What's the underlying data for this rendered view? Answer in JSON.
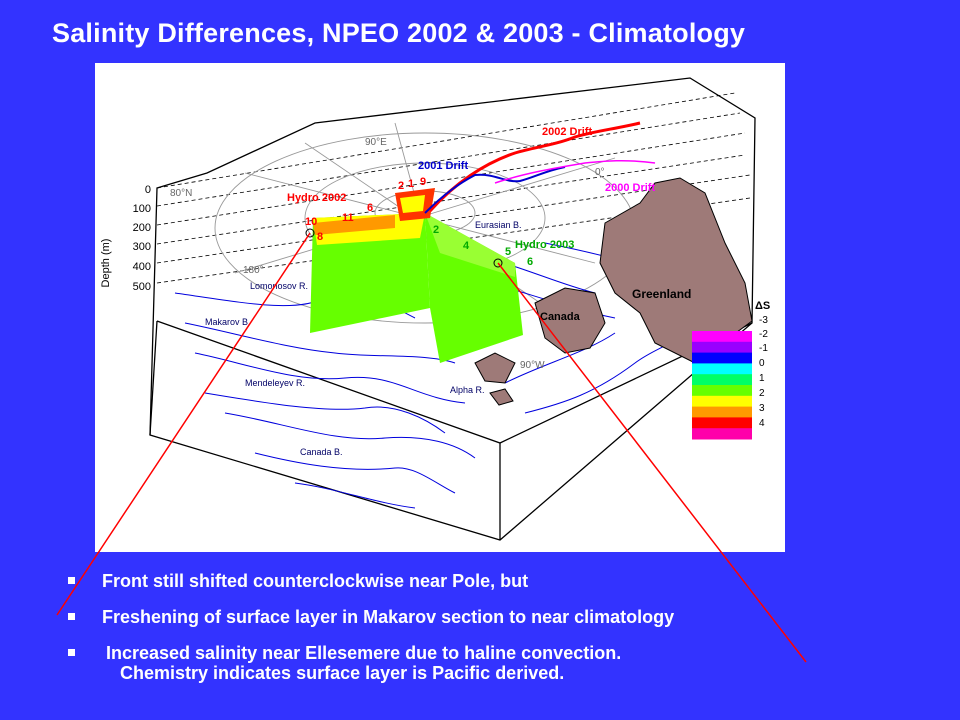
{
  "title": "Salinity Differences,  NPEO 2002 & 2003 - Climatology",
  "diagram": {
    "drift_labels": {
      "d2002": "2002 Drift",
      "d2001": "2001 Drift",
      "d2000": "2000 Drift"
    },
    "hydro_labels": {
      "h2002": "Hydro 2002",
      "h2003": "Hydro 2003"
    },
    "station_numbers_2002": [
      "2",
      "1",
      "9",
      "6",
      "10",
      "11",
      "8"
    ],
    "station_numbers_2003": [
      "2",
      "4",
      "5",
      "6"
    ],
    "lat_lon_labels": {
      "lat80": "80°N",
      "lon90e": "90°E",
      "lon180": "180°",
      "lon90w": "90°W",
      "lon0": "0°"
    },
    "depth_axis": {
      "label": "Depth (m)",
      "ticks": [
        "0",
        "100",
        "200",
        "300",
        "400",
        "500"
      ]
    },
    "region_labels": {
      "greenland": "Greenland",
      "canada": "Canada",
      "eurasian_basin": "Eurasian B.",
      "lomonosov": "Lomonosov R.",
      "makarov": "Makarov B.",
      "mendeleyev": "Mendeleyev R.",
      "alpha": "Alpha R.",
      "canada_basin": "Canada B."
    },
    "colorbar": {
      "title": "ΔS",
      "ticks": [
        "-3",
        "-2",
        "-1",
        "0",
        "1",
        "2",
        "3",
        "4"
      ],
      "colors": [
        "#ff00ff",
        "#9900ff",
        "#0000ff",
        "#00ffff",
        "#00ff66",
        "#66ff00",
        "#ffff00",
        "#ff9900",
        "#ff0000",
        "#ff00aa"
      ]
    },
    "colors": {
      "drift2002": "#ff0000",
      "drift2001": "#0000cc",
      "drift2000": "#ff00ff",
      "hydro2002": "#ff0000",
      "hydro2003": "#00cc00",
      "land": "#9e7a78",
      "contours": "#0000dd",
      "pointer": "#ff0000"
    }
  },
  "bullets": [
    "Front still shifted counterclockwise near Pole, but",
    "Freshening of surface layer in Makarov section to near climatology",
    "Increased salinity near Ellesemere due to haline convection."
  ],
  "bullet_continuation": "Chemistry indicates surface layer is Pacific derived."
}
